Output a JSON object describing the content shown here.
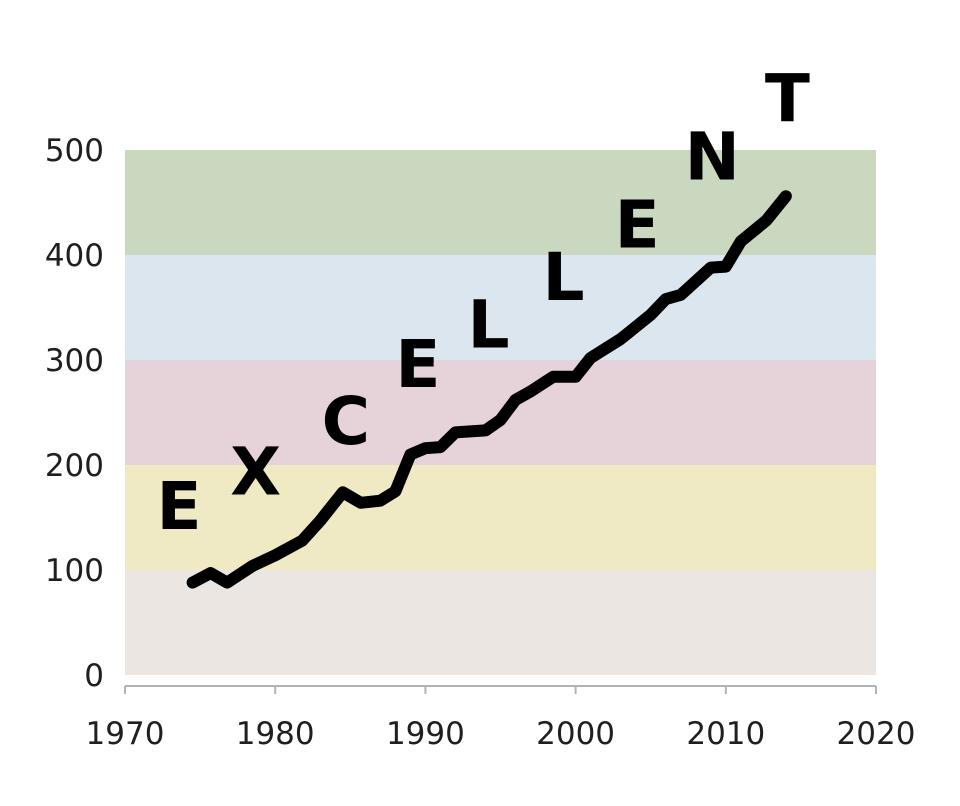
{
  "chart_data": {
    "type": "line",
    "title": "",
    "xlabel": "",
    "ylabel": "",
    "xlim": [
      1970,
      2020
    ],
    "ylim": [
      0,
      500
    ],
    "x_ticks": [
      "1970",
      "1980",
      "1990",
      "2000",
      "2010",
      "2020"
    ],
    "y_ticks": [
      "0",
      "100",
      "200",
      "300",
      "400",
      "500"
    ],
    "grid": false,
    "legend": "none",
    "bands": [
      {
        "from": 0,
        "to": 100,
        "color": "#ebe6e1"
      },
      {
        "from": 100,
        "to": 200,
        "color": "#efeac3"
      },
      {
        "from": 200,
        "to": 300,
        "color": "#e6d3da"
      },
      {
        "from": 300,
        "to": 400,
        "color": "#dce6ee"
      },
      {
        "from": 400,
        "to": 500,
        "color": "#c9d8bf"
      }
    ],
    "series": [
      {
        "name": "",
        "color": "#000000",
        "points": [
          [
            1974.5,
            88
          ],
          [
            1975.7,
            97
          ],
          [
            1976.8,
            88
          ],
          [
            1978.5,
            104
          ],
          [
            1980,
            114
          ],
          [
            1981.8,
            128
          ],
          [
            1983,
            147
          ],
          [
            1984.5,
            174
          ],
          [
            1985.7,
            164
          ],
          [
            1987,
            166
          ],
          [
            1988,
            175
          ],
          [
            1989,
            210
          ],
          [
            1990,
            216
          ],
          [
            1991,
            217
          ],
          [
            1992,
            231
          ],
          [
            1994,
            233
          ],
          [
            1995,
            243
          ],
          [
            1996,
            262
          ],
          [
            1997,
            270
          ],
          [
            1998.5,
            284
          ],
          [
            2000,
            284
          ],
          [
            2001,
            302
          ],
          [
            2003,
            320
          ],
          [
            2005,
            343
          ],
          [
            2006,
            358
          ],
          [
            2007,
            362
          ],
          [
            2009,
            388
          ],
          [
            2010,
            389
          ],
          [
            2011,
            413
          ],
          [
            2012.7,
            433
          ],
          [
            2014,
            456
          ]
        ]
      }
    ],
    "annotations": [
      {
        "text": "E",
        "x": 1973.6,
        "y": 162
      },
      {
        "text": "X",
        "x": 1978.7,
        "y": 195
      },
      {
        "text": "C",
        "x": 1984.7,
        "y": 243
      },
      {
        "text": "E",
        "x": 1989.5,
        "y": 297
      },
      {
        "text": "L",
        "x": 1994.2,
        "y": 335
      },
      {
        "text": "L",
        "x": 1999.2,
        "y": 380
      },
      {
        "text": "E",
        "x": 2004.1,
        "y": 430
      },
      {
        "text": "N",
        "x": 2009.1,
        "y": 495
      },
      {
        "text": "T",
        "x": 2014.1,
        "y": 550
      }
    ]
  }
}
